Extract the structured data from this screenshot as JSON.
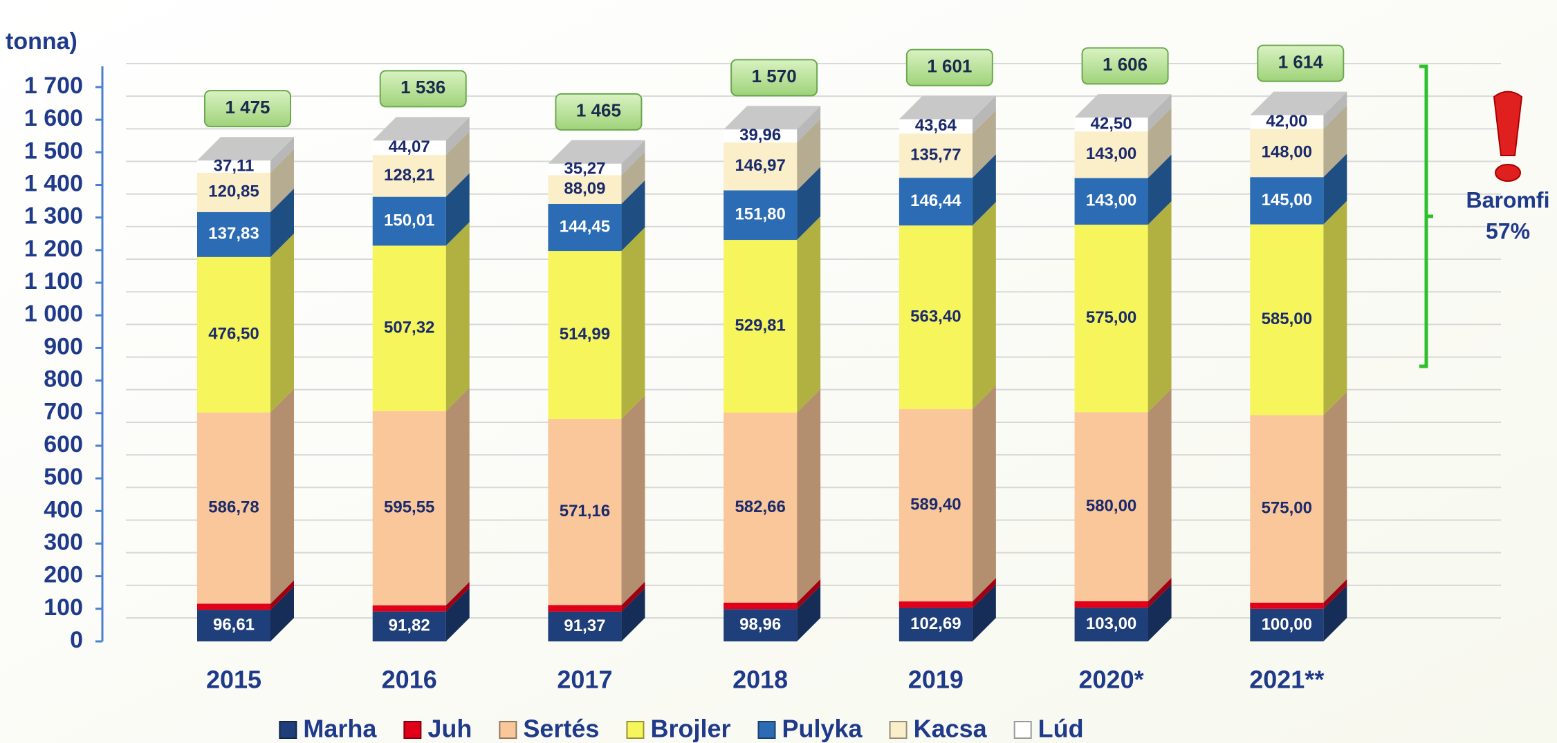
{
  "chart_data": {
    "type": "stacked_bar_3d",
    "y_axis_label": "tonna)",
    "categories": [
      "2015",
      "2016",
      "2017",
      "2018",
      "2019",
      "2020*",
      "2021**"
    ],
    "series": [
      {
        "name": "Marha",
        "color": "#1f3f7a",
        "values": [
          96.61,
          91.82,
          91.37,
          98.96,
          102.69,
          103.0,
          100.0
        ],
        "value_labels": [
          "96,61",
          "91,82",
          "91,37",
          "98,96",
          "102,69",
          "103,00",
          "100,00"
        ]
      },
      {
        "name": "Juh",
        "color": "#e0001a",
        "values": [
          19,
          19,
          20,
          20,
          20,
          20,
          19
        ]
      },
      {
        "name": "Sertés",
        "color": "#f9c79a",
        "values": [
          586.78,
          595.55,
          571.16,
          582.66,
          589.4,
          580.0,
          575.0
        ],
        "value_labels": [
          "586,78",
          "595,55",
          "571,16",
          "582,66",
          "589,40",
          "580,00",
          "575,00"
        ]
      },
      {
        "name": "Brojler",
        "color": "#f6f65c",
        "values": [
          476.5,
          507.32,
          514.99,
          529.81,
          563.4,
          575.0,
          585.0
        ],
        "value_labels": [
          "476,50",
          "507,32",
          "514,99",
          "529,81",
          "563,40",
          "575,00",
          "585,00"
        ]
      },
      {
        "name": "Pulyka",
        "color": "#2b6cb4",
        "values": [
          137.83,
          150.01,
          144.45,
          151.8,
          146.44,
          143.0,
          145.0
        ],
        "value_labels": [
          "137,83",
          "150,01",
          "144,45",
          "151,80",
          "146,44",
          "143,00",
          "145,00"
        ]
      },
      {
        "name": "Kacsa",
        "color": "#fbefc9",
        "values": [
          120.85,
          128.21,
          88.09,
          146.97,
          135.77,
          143.0,
          148.0
        ],
        "value_labels": [
          "120,85",
          "128,21",
          "88,09",
          "146,97",
          "135,77",
          "143,00",
          "148,00"
        ]
      },
      {
        "name": "Lúd",
        "color": "#ffffff",
        "values": [
          37.11,
          44.07,
          35.27,
          39.96,
          43.64,
          42.5,
          42.0
        ],
        "value_labels": [
          "37,11",
          "44,07",
          "35,27",
          "39,96",
          "43,64",
          "42,50",
          "42,00"
        ]
      }
    ],
    "totals": [
      1475,
      1536,
      1465,
      1570,
      1601,
      1606,
      1614
    ],
    "total_labels": [
      "1 475",
      "1 536",
      "1 465",
      "1 570",
      "1 601",
      "1 606",
      "1 614"
    ],
    "ylim": [
      0,
      1700
    ],
    "yticks": [
      0,
      100,
      200,
      300,
      400,
      500,
      600,
      700,
      800,
      900,
      {
        "value": 1000,
        "label": "1 000"
      },
      {
        "value": 1100,
        "label": "1 100"
      },
      {
        "value": 1200,
        "label": "1 200"
      },
      {
        "value": 1300,
        "label": "1 300"
      },
      {
        "value": 1400,
        "label": "1 400"
      },
      {
        "value": 1500,
        "label": "1 500"
      },
      {
        "value": 1600,
        "label": "1 600"
      },
      {
        "value": 1700,
        "label": "1 700"
      }
    ],
    "grid": true,
    "legend": "bottom",
    "annotation": {
      "title": "Baromfi",
      "share": "57%"
    }
  }
}
